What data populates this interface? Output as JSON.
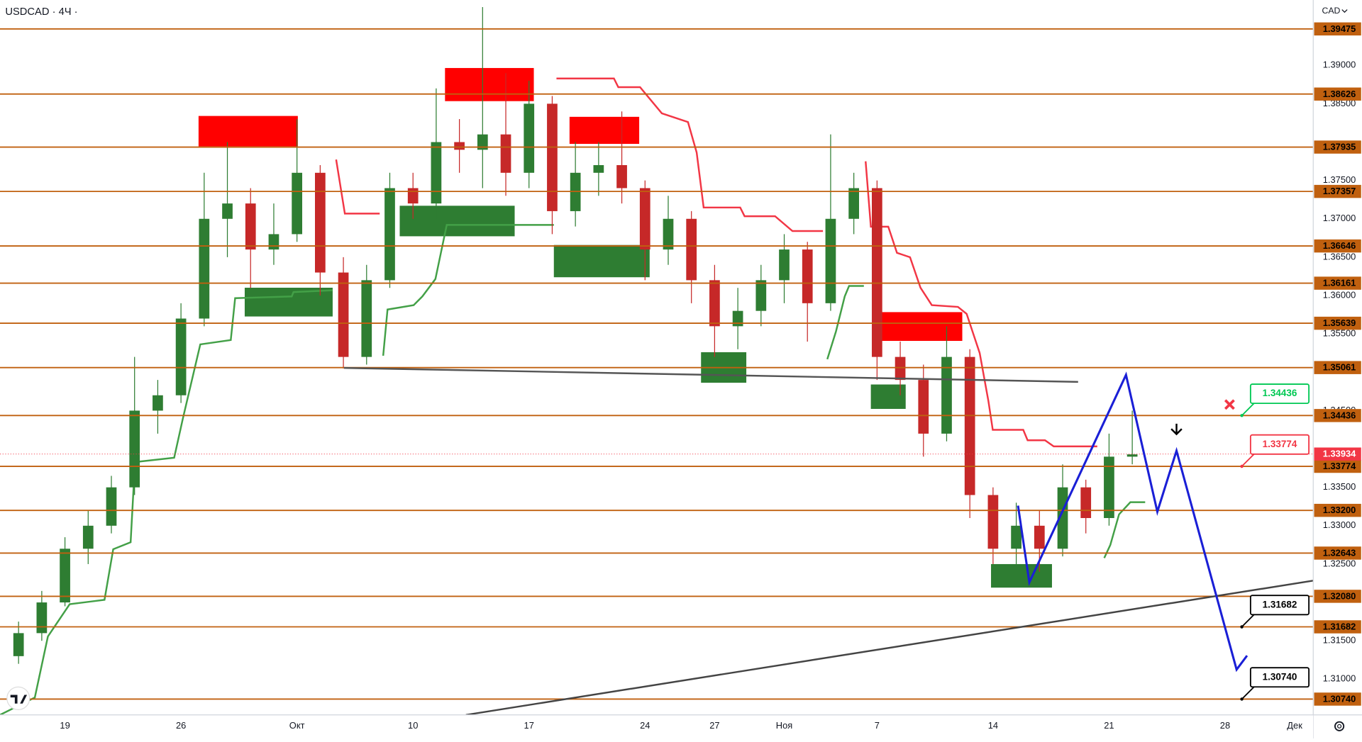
{
  "chart_data": {
    "type": "candlestick",
    "title": "USDCAD · 4Ч ·",
    "currency": "CAD",
    "x": [
      -2,
      -1,
      0,
      1,
      2,
      3,
      4,
      5,
      6,
      7,
      8,
      9,
      10,
      11,
      12,
      13,
      14,
      15,
      16,
      17,
      18,
      19,
      20,
      21,
      22,
      23,
      24,
      25,
      26,
      27,
      28,
      29,
      30,
      31,
      32,
      33,
      34,
      35,
      36,
      37,
      38,
      39,
      40,
      41,
      42,
      43,
      44,
      45,
      46
    ],
    "open": [
      1.313,
      1.316,
      1.32,
      1.327,
      1.33,
      1.335,
      1.345,
      1.347,
      1.357,
      1.37,
      1.372,
      1.366,
      1.368,
      1.376,
      1.363,
      1.352,
      1.362,
      1.374,
      1.372,
      1.38,
      1.379,
      1.381,
      1.376,
      1.385,
      1.371,
      1.376,
      1.377,
      1.374,
      1.366,
      1.37,
      1.362,
      1.356,
      1.358,
      1.362,
      1.366,
      1.359,
      1.37,
      1.374,
      1.352,
      1.349,
      1.342,
      1.352,
      1.334,
      1.327,
      1.33,
      1.327,
      1.335,
      1.331,
      1.339
    ],
    "high": [
      1.3175,
      1.3215,
      1.3285,
      1.332,
      1.3365,
      1.352,
      1.349,
      1.359,
      1.376,
      1.38,
      1.374,
      1.372,
      1.383,
      1.377,
      1.365,
      1.364,
      1.376,
      1.376,
      1.387,
      1.383,
      1.3976,
      1.389,
      1.388,
      1.386,
      1.38,
      1.38,
      1.384,
      1.375,
      1.373,
      1.371,
      1.364,
      1.361,
      1.364,
      1.368,
      1.367,
      1.381,
      1.376,
      1.375,
      1.354,
      1.351,
      1.356,
      1.353,
      1.335,
      1.333,
      1.332,
      1.338,
      1.336,
      1.342,
      1.345
    ],
    "low": [
      1.312,
      1.315,
      1.3195,
      1.325,
      1.329,
      1.334,
      1.342,
      1.346,
      1.356,
      1.365,
      1.361,
      1.364,
      1.367,
      1.36,
      1.3505,
      1.351,
      1.361,
      1.37,
      1.37,
      1.376,
      1.374,
      1.373,
      1.374,
      1.368,
      1.369,
      1.373,
      1.372,
      1.362,
      1.364,
      1.359,
      1.352,
      1.353,
      1.356,
      1.359,
      1.354,
      1.358,
      1.368,
      1.349,
      1.347,
      1.339,
      1.341,
      1.331,
      1.325,
      1.325,
      1.324,
      1.326,
      1.329,
      1.33,
      1.338
    ],
    "close": [
      1.316,
      1.32,
      1.327,
      1.33,
      1.335,
      1.345,
      1.347,
      1.357,
      1.37,
      1.372,
      1.366,
      1.368,
      1.376,
      1.363,
      1.352,
      1.362,
      1.374,
      1.372,
      1.38,
      1.379,
      1.381,
      1.376,
      1.385,
      1.371,
      1.376,
      1.377,
      1.374,
      1.366,
      1.37,
      1.362,
      1.356,
      1.358,
      1.362,
      1.366,
      1.359,
      1.37,
      1.374,
      1.352,
      1.349,
      1.342,
      1.352,
      1.334,
      1.327,
      1.33,
      1.327,
      1.335,
      1.331,
      1.339,
      1.3393
    ],
    "up_color": "#2e7d32",
    "down_color": "#c62828",
    "xlim": [
      -2.8,
      53.8
    ],
    "xticks": [
      {
        "value": 0,
        "label": "19"
      },
      {
        "value": 5,
        "label": "26"
      },
      {
        "value": 10,
        "label": "Окт"
      },
      {
        "value": 15,
        "label": "10"
      },
      {
        "value": 20,
        "label": "17"
      },
      {
        "value": 25,
        "label": "24"
      },
      {
        "value": 28,
        "label": "27"
      },
      {
        "value": 31,
        "label": "Ноя"
      },
      {
        "value": 35,
        "label": "7"
      },
      {
        "value": 40,
        "label": "14"
      },
      {
        "value": 45,
        "label": "21"
      },
      {
        "value": 50,
        "label": "28"
      },
      {
        "value": 53,
        "label": "Дек"
      }
    ],
    "ylim": [
      1.30534,
      1.39852
    ],
    "yticks": [
      {
        "value": 1.31,
        "label": "1.31000"
      },
      {
        "value": 1.315,
        "label": "1.31500"
      },
      {
        "value": 1.325,
        "label": "1.32500"
      },
      {
        "value": 1.33,
        "label": "1.33000"
      },
      {
        "value": 1.335,
        "label": "1.33500"
      },
      {
        "value": 1.345,
        "label": "1.34500"
      },
      {
        "value": 1.355,
        "label": "1.35500"
      },
      {
        "value": 1.36,
        "label": "1.36000"
      },
      {
        "value": 1.365,
        "label": "1.36500"
      },
      {
        "value": 1.37,
        "label": "1.37000"
      },
      {
        "value": 1.375,
        "label": "1.37500"
      },
      {
        "value": 1.385,
        "label": "1.38500"
      },
      {
        "value": 1.39,
        "label": "1.39000"
      }
    ],
    "grid": false,
    "level_color": "#c0600f",
    "levels": [
      1.39475,
      1.38626,
      1.37935,
      1.37357,
      1.36646,
      1.36161,
      1.35639,
      1.35061,
      1.34436,
      1.33774,
      {
        "value": 1.332,
        "label": "1.33200"
      },
      1.32643,
      {
        "value": 1.3208,
        "label": "1.32080"
      },
      1.31682,
      {
        "value": 1.3074,
        "label": "1.30740"
      }
    ],
    "last_price": 1.33934,
    "last_price_color": "#f23645",
    "callouts": [
      {
        "value": 1.34436,
        "color": "#00c853"
      },
      {
        "value": 1.33774,
        "color": "#f23645"
      },
      {
        "value": 1.31682,
        "color": "#000000"
      },
      {
        "value": 1.3074,
        "value_label": "1.30740",
        "color": "#000000"
      }
    ]
  }
}
